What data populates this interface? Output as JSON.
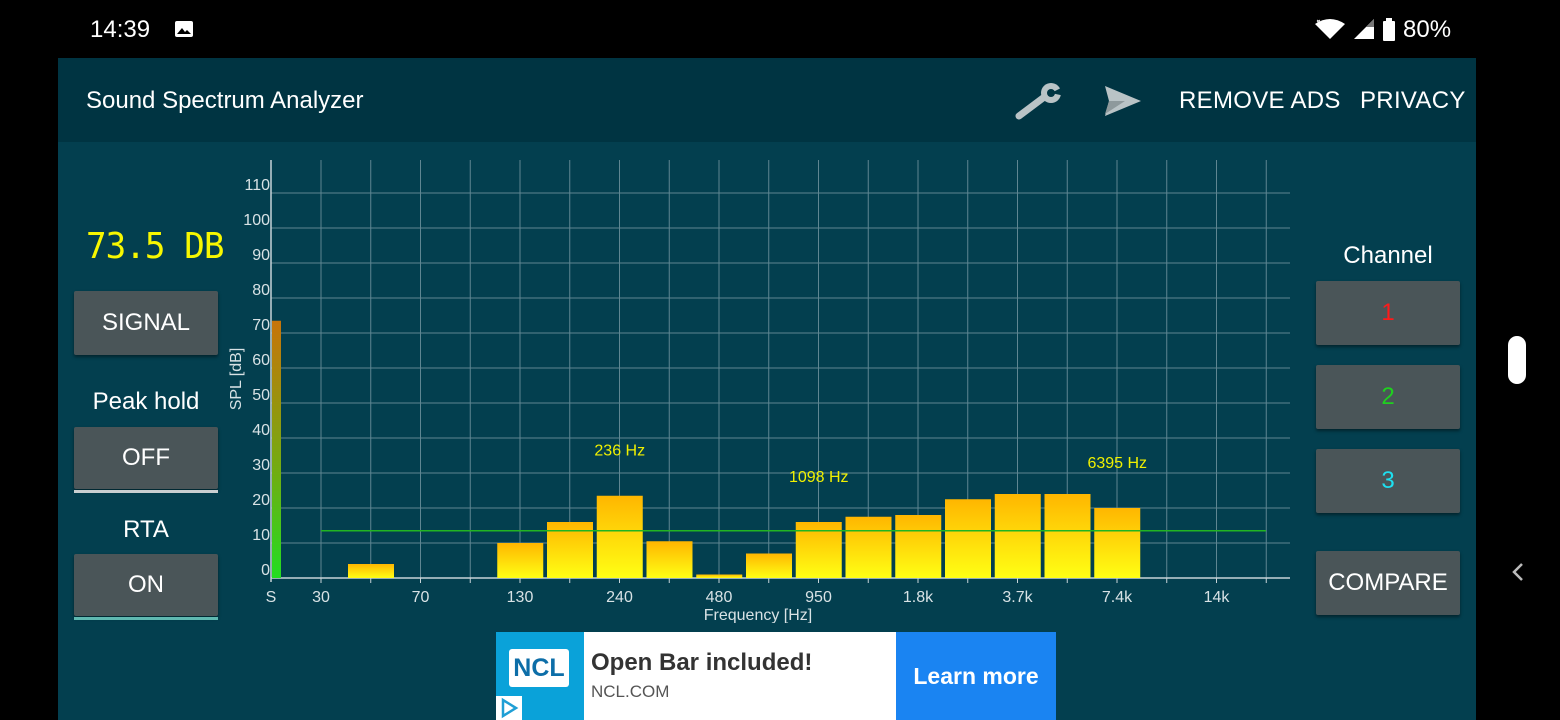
{
  "status_bar": {
    "time": "14:39",
    "battery_text": "80%",
    "icons": [
      "image-icon",
      "wifi-icon",
      "signal-icon",
      "battery-icon"
    ]
  },
  "toolbar": {
    "title": "Sound Spectrum Analyzer",
    "icons": [
      "wrench-icon",
      "send-icon"
    ],
    "remove_ads": "REMOVE ADS",
    "privacy": "PRIVACY"
  },
  "left_panel": {
    "db_readout": "73.5 DB",
    "signal_button": "SIGNAL",
    "peak_hold_label": "Peak hold",
    "peak_hold_button": "OFF",
    "rta_label": "RTA",
    "rta_button": "ON"
  },
  "right_panel": {
    "channel_label": "Channel",
    "channels": [
      {
        "label": "1",
        "color": "#ff1a1a"
      },
      {
        "label": "2",
        "color": "#1fd01f"
      },
      {
        "label": "3",
        "color": "#1ee0f0"
      }
    ],
    "compare_button": "COMPARE"
  },
  "chart_data": {
    "type": "bar",
    "xlabel": "Frequency [Hz]",
    "ylabel": "SPL [dB]",
    "ylim": [
      0,
      120
    ],
    "yticks": [
      0,
      10,
      20,
      30,
      40,
      50,
      60,
      70,
      80,
      90,
      100,
      110
    ],
    "x_tick_labels": [
      "S",
      "30",
      "70",
      "130",
      "240",
      "480",
      "950",
      "1.8k",
      "3.7k",
      "7.4k",
      "14k"
    ],
    "signal_level": 73.5,
    "bars": [
      0,
      4,
      0,
      0,
      10,
      16,
      23.5,
      10.5,
      1,
      7,
      16,
      17.5,
      18,
      22.5,
      24,
      24,
      20,
      0,
      0,
      0
    ],
    "threshold": 13.5,
    "peak_labels": [
      {
        "text": "236 Hz",
        "bar": 6,
        "level": 35
      },
      {
        "text": "1098 Hz",
        "bar": 10,
        "level": 27.5
      },
      {
        "text": "6395 Hz",
        "bar": 16,
        "level": 31.5
      }
    ],
    "grid": true,
    "colors": {
      "bar_top": "#ffb600",
      "bar_bottom": "#ffff14",
      "grid": "#5f8692",
      "axis": "#c8d4d8",
      "threshold": "#22b422",
      "label": "#f0f000",
      "signal_top": "#c8740a",
      "signal_bottom": "#22dd22"
    }
  },
  "ad": {
    "logo_text": "NCL",
    "headline": "Open Bar included!",
    "url": "NCL.COM",
    "cta": "Learn more"
  }
}
